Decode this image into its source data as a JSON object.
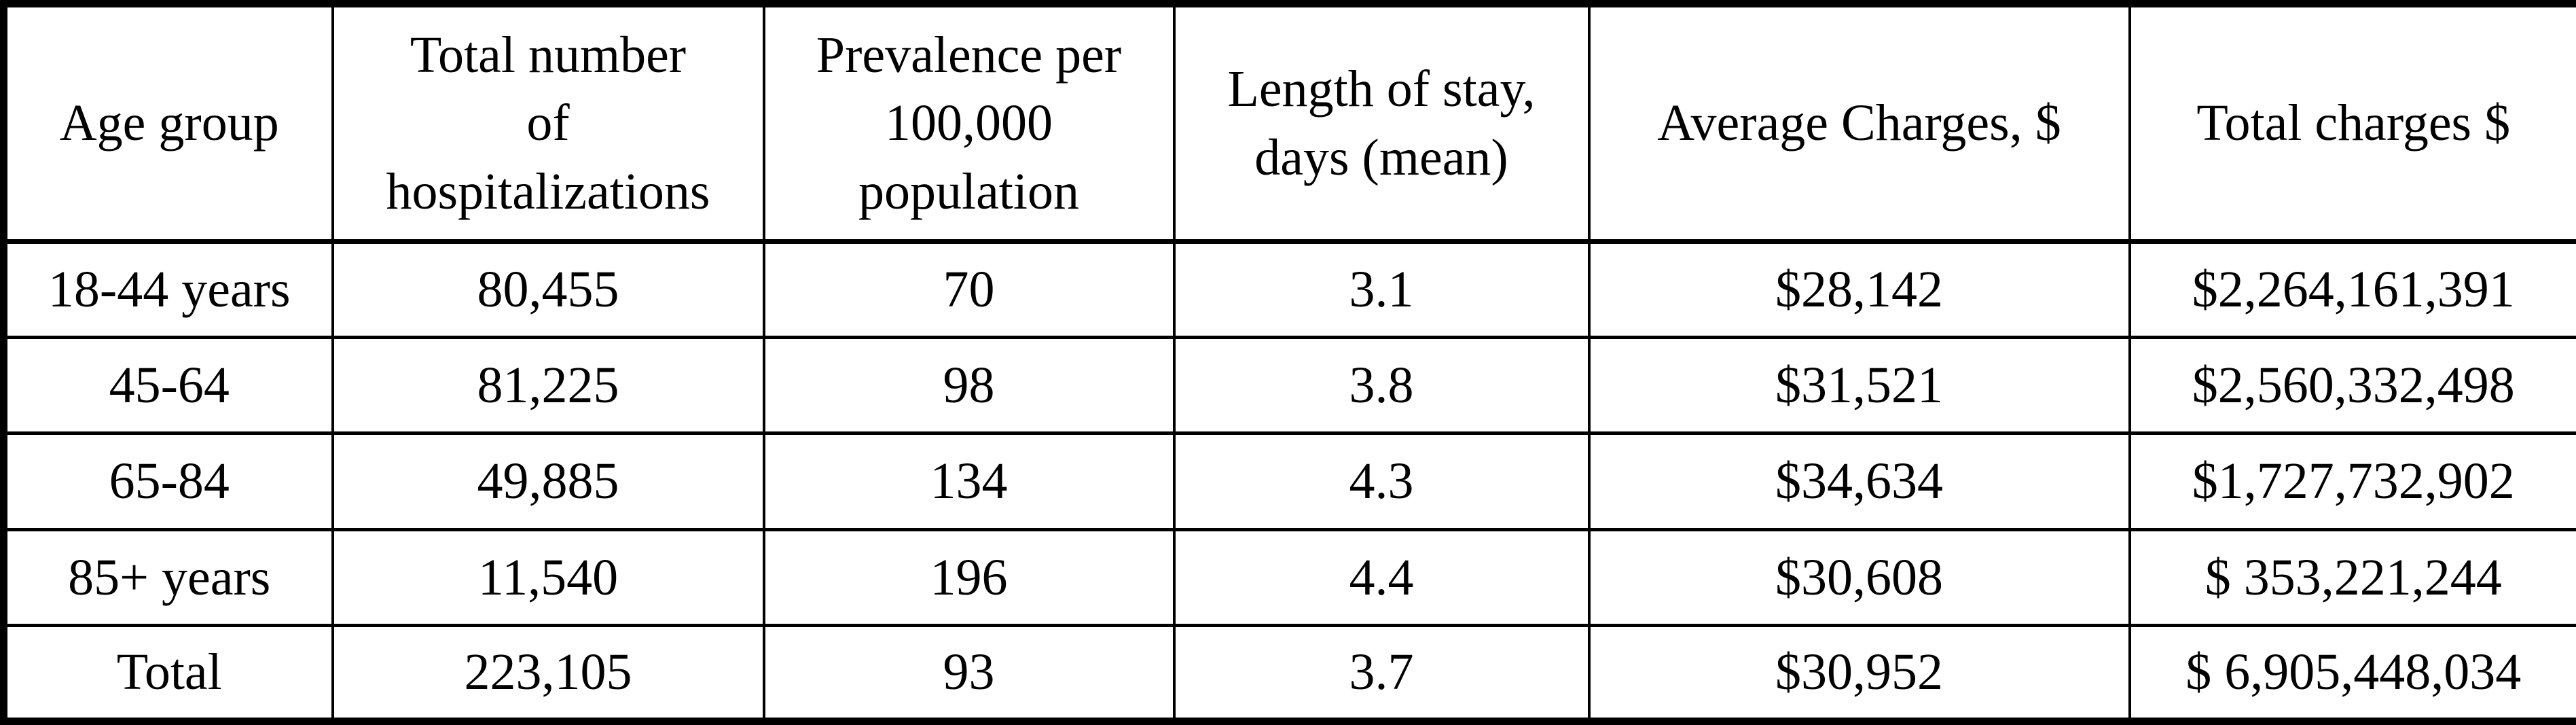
{
  "colors": {
    "text": "#000000",
    "background": "#ffffff",
    "border": "#000000"
  },
  "chart_data": {
    "type": "table",
    "columns": [
      "Age group",
      "Total number\nof\nhospitalizations",
      "Prevalence per\n100,000\npopulation",
      "Length of stay,\ndays (mean)",
      "Average Charges, $",
      "Total charges $"
    ],
    "rows": [
      [
        "18-44 years",
        "80,455",
        "70",
        "3.1",
        "$28,142",
        "$2,264,161,391"
      ],
      [
        "45-64",
        "81,225",
        "98",
        "3.8",
        "$31,521",
        "$2,560,332,498"
      ],
      [
        "65-84",
        "49,885",
        "134",
        "4.3",
        "$34,634",
        "$1,727,732,902"
      ],
      [
        "85+ years",
        "11,540",
        "196",
        "4.4",
        "$30,608",
        "$ 353,221,244"
      ],
      [
        "Total",
        "223,105",
        "93",
        "3.7",
        "$30,952",
        "$ 6,905,448,034"
      ]
    ]
  }
}
